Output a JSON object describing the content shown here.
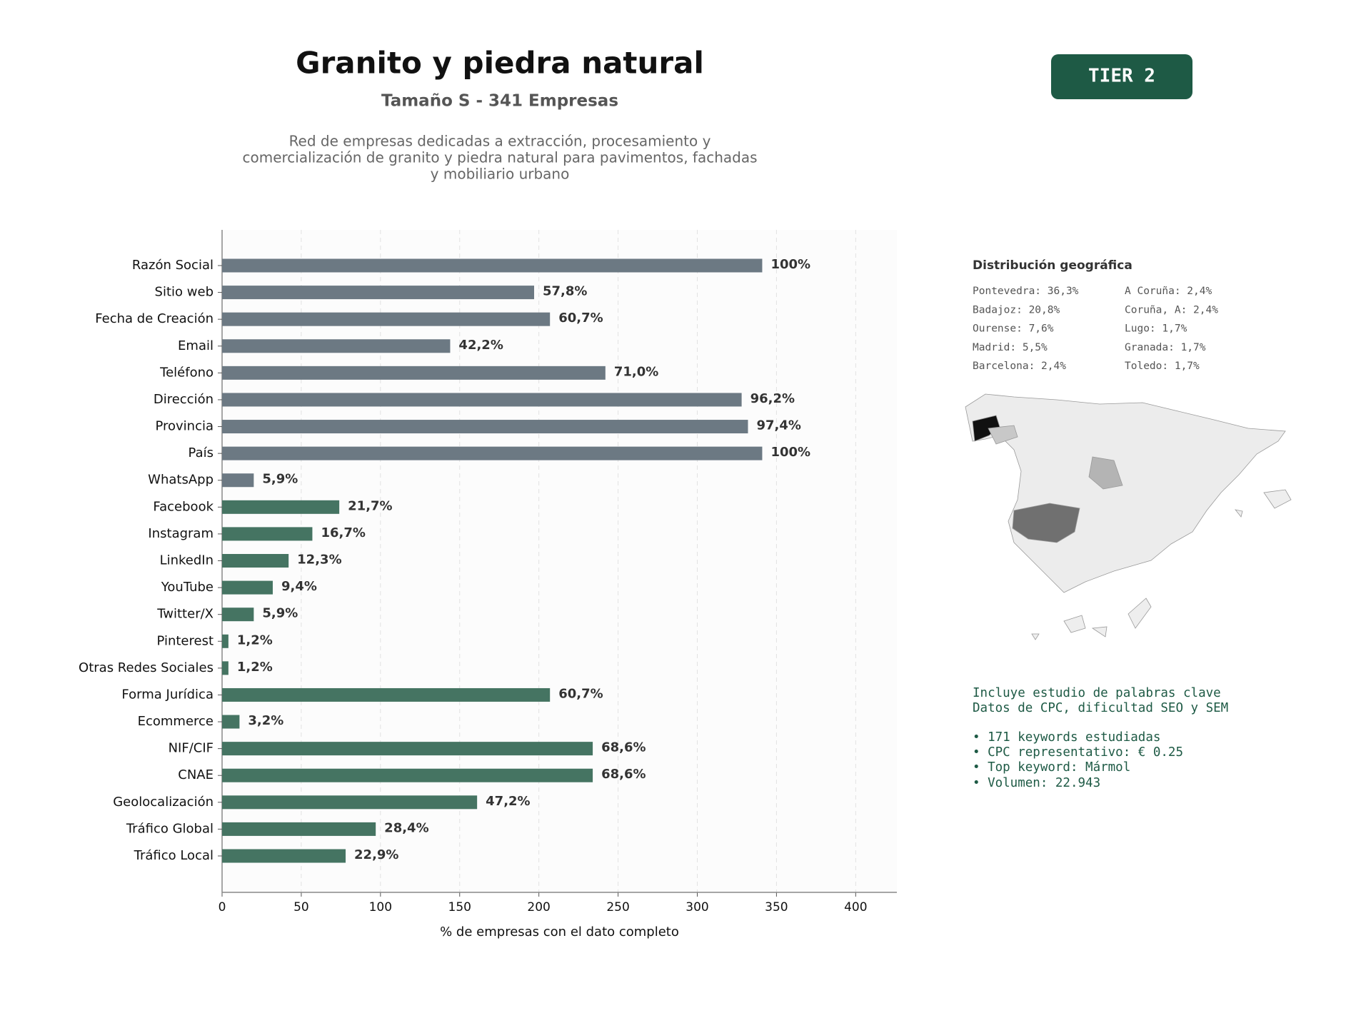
{
  "chart_data": {
    "type": "bar",
    "title": "Granito y piedra natural",
    "subtitle": "Tamaño S - 341 Empresas",
    "description": [
      "Red de empresas dedicadas a extracción, procesamiento y",
      "comercialización de granito y piedra natural para pavimentos, fachadas",
      "y mobiliario urbano"
    ],
    "badge": "TIER 2",
    "categories": [
      "Razón Social",
      "Sitio web",
      "Fecha de Creación",
      "Email",
      "Teléfono",
      "Dirección",
      "Provincia",
      "País",
      "WhatsApp",
      "Facebook",
      "Instagram",
      "LinkedIn",
      "YouTube",
      "Twitter/X",
      "Pinterest",
      "Otras Redes Sociales",
      "Forma Jurídica",
      "Ecommerce",
      "NIF/CIF",
      "CNAE",
      "Geolocalización",
      "Tráfico Global",
      "Tráfico Local"
    ],
    "values": [
      341,
      197,
      207,
      144,
      242,
      328,
      332,
      341,
      20,
      74,
      57,
      42,
      32,
      20,
      4,
      4,
      207,
      11,
      234,
      234,
      161,
      97,
      78
    ],
    "value_labels": [
      "100%",
      "57,8%",
      "60,7%",
      "42,2%",
      "71,0%",
      "96,2%",
      "97,4%",
      "100%",
      "5,9%",
      "21,7%",
      "16,7%",
      "12,3%",
      "9,4%",
      "5,9%",
      "1,2%",
      "1,2%",
      "60,7%",
      "3,2%",
      "68,6%",
      "68,6%",
      "47,2%",
      "28,4%",
      "22,9%"
    ],
    "colors": [
      "#6c7983",
      "#6c7983",
      "#6c7983",
      "#6c7983",
      "#6c7983",
      "#6c7983",
      "#6c7983",
      "#6c7983",
      "#6c7983",
      "#457462",
      "#457462",
      "#457462",
      "#457462",
      "#457462",
      "#457462",
      "#457462",
      "#457462",
      "#457462",
      "#457462",
      "#457462",
      "#457462",
      "#457462",
      "#457462"
    ],
    "xlim": [
      0,
      426
    ],
    "xticks": [
      0,
      50,
      100,
      150,
      200,
      250,
      300,
      350,
      400
    ],
    "xlabel": "% de empresas con el dato completo",
    "grid": true
  },
  "geo_panel": {
    "title": "Distribución geográfica",
    "entries": [
      "Pontevedra: 36,3%",
      "Badajoz: 20,8%",
      "Ourense: 7,6%",
      "Madrid: 5,5%",
      "Barcelona: 2,4%",
      "A Coruña: 2,4%",
      "Coruña, A: 2,4%",
      "Lugo: 1,7%",
      "Granada: 1,7%",
      "Toledo: 1,7%"
    ]
  },
  "keywords_panel": {
    "lines": [
      "Incluye estudio de palabras clave",
      "Datos de CPC, dificultad SEO y SEM",
      "• 171 keywords estudiadas",
      "• CPC representativo: € 0.25",
      "• Top keyword: Mármol",
      "• Volumen: 22.943"
    ]
  }
}
